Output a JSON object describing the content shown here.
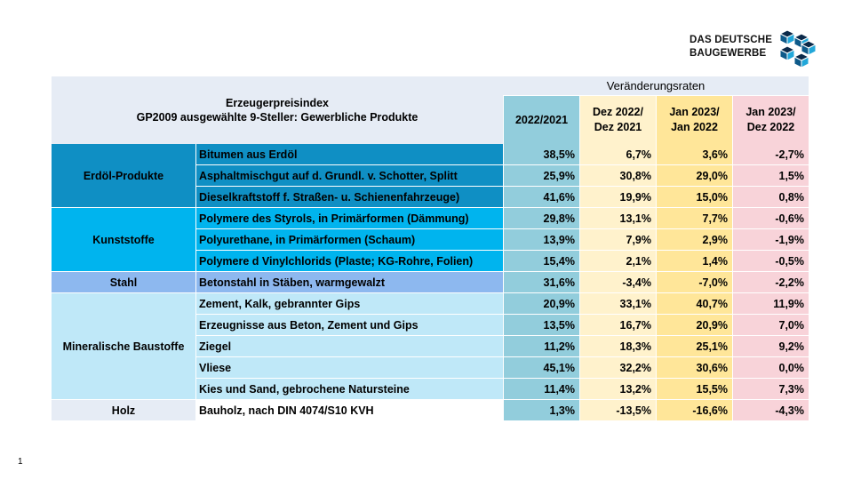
{
  "logo": {
    "line1": "DAS DEUTSCHE",
    "line2": "BAUGEWERBE"
  },
  "page_number": "1",
  "header": {
    "title_line1": "Erzeugerpreisindex",
    "title_line2": "GP2009 ausgewählte 9-Steller: Gewerbliche Produkte",
    "group_label": "Veränderungsraten",
    "col1": "2022/2021",
    "col2_line1": "Dez 2022/",
    "col2_line2": "Dez 2021",
    "col3_line1": "Jan 2023/",
    "col3_line2": "Jan 2022",
    "col4_line1": "Jan 2023/",
    "col4_line2": "Dez 2022"
  },
  "groups": [
    {
      "name": "Erdöl-Produkte",
      "color": "#0f8fc4",
      "row_color": "#0f8fc4"
    },
    {
      "name": "Kunststoffe",
      "color": "#00b4ee",
      "row_color": "#00b4ee"
    },
    {
      "name": "Stahl",
      "color": "#8db8ef",
      "row_color": "#8db8ef"
    },
    {
      "name": "Mineralische Baustoffe",
      "color": "#bfe8f8",
      "row_color": "#bfe8f8"
    },
    {
      "name": "Holz",
      "color": "#e6ecf5",
      "row_color": "#e6ecf5"
    }
  ],
  "rows": [
    {
      "product": "Bitumen aus Erdöl",
      "v1": "38,5%",
      "v2": "6,7%",
      "v3": "3,6%",
      "v4": "-2,7%"
    },
    {
      "product": "Asphaltmischgut auf d. Grundl. v. Schotter, Splitt",
      "v1": "25,9%",
      "v2": "30,8%",
      "v3": "29,0%",
      "v4": "1,5%"
    },
    {
      "product": "Dieselkraftstoff f. Straßen- u. Schienenfahrzeuge)",
      "v1": "41,6%",
      "v2": "19,9%",
      "v3": "15,0%",
      "v4": "0,8%"
    },
    {
      "product": "Polymere des Styrols, in Primärformen (Dämmung)",
      "v1": "29,8%",
      "v2": "13,1%",
      "v3": "7,7%",
      "v4": "-0,6%"
    },
    {
      "product": "Polyurethane, in Primärformen (Schaum)",
      "v1": "13,9%",
      "v2": "7,9%",
      "v3": "2,9%",
      "v4": "-1,9%"
    },
    {
      "product": "Polymere d Vinylchlorids (Plaste; KG-Rohre, Folien)",
      "v1": "15,4%",
      "v2": "2,1%",
      "v3": "1,4%",
      "v4": "-0,5%"
    },
    {
      "product": "Betonstahl in Stäben, warmgewalzt",
      "v1": "31,6%",
      "v2": "-3,4%",
      "v3": "-7,0%",
      "v4": "-2,2%"
    },
    {
      "product": "Zement, Kalk, gebrannter Gips",
      "v1": "20,9%",
      "v2": "33,1%",
      "v3": "40,7%",
      "v4": "11,9%"
    },
    {
      "product": "Erzeugnisse aus Beton, Zement und Gips",
      "v1": "13,5%",
      "v2": "16,7%",
      "v3": "20,9%",
      "v4": "7,0%"
    },
    {
      "product": "Ziegel",
      "v1": "11,2%",
      "v2": "18,3%",
      "v3": "25,1%",
      "v4": "9,2%"
    },
    {
      "product": "Vliese",
      "v1": "45,1%",
      "v2": "32,2%",
      "v3": "30,6%",
      "v4": "0,0%"
    },
    {
      "product": "Kies und Sand, gebrochene Natursteine",
      "v1": "11,4%",
      "v2": "13,2%",
      "v3": "15,5%",
      "v4": "7,3%"
    },
    {
      "product": "Bauholz, nach DIN 4074/S10 KVH",
      "v1": "1,3%",
      "v2": "-13,5%",
      "v3": "-16,6%",
      "v4": "-4,3%"
    }
  ]
}
